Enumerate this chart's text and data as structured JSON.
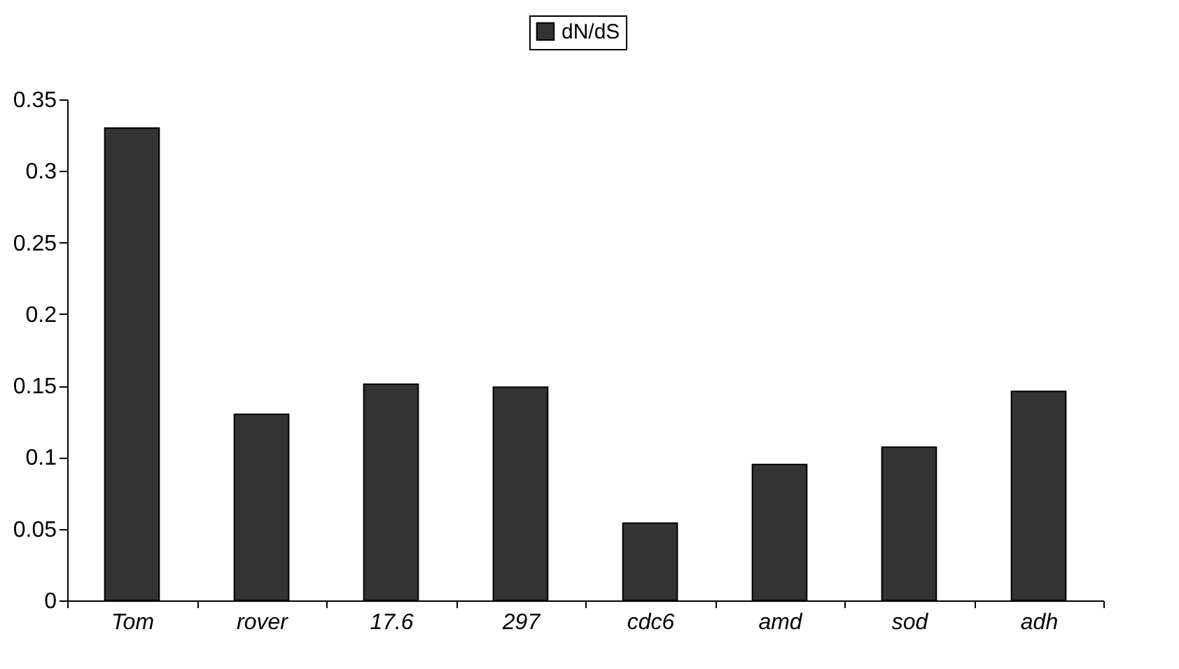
{
  "chart_data": {
    "type": "bar",
    "categories": [
      "Tom",
      "rover",
      "17.6",
      "297",
      "cdc6",
      "amd",
      "sod",
      "adh"
    ],
    "series": [
      {
        "name": "dN/dS",
        "color": "#333333",
        "values": [
          0.33,
          0.13,
          0.151,
          0.149,
          0.054,
          0.095,
          0.107,
          0.146
        ]
      }
    ],
    "ylim": [
      0,
      0.35
    ],
    "yticks": [
      0,
      0.05,
      0.1,
      0.15,
      0.2,
      0.25,
      0.3,
      0.35
    ],
    "grid": false,
    "legend": "top"
  }
}
